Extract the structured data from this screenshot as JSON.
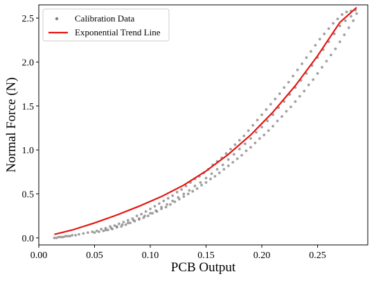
{
  "chart_data": {
    "type": "scatter",
    "title": "",
    "xlabel": "PCB Output",
    "ylabel": "Normal Force (N)",
    "xlim": [
      0.0,
      0.295
    ],
    "ylim": [
      -0.08,
      2.65
    ],
    "xticks": [
      0.0,
      0.05,
      0.1,
      0.15,
      0.2,
      0.25
    ],
    "xtick_labels": [
      "0.00",
      "0.05",
      "0.10",
      "0.15",
      "0.20",
      "0.25"
    ],
    "yticks": [
      0.0,
      0.5,
      1.0,
      1.5,
      2.0,
      2.5
    ],
    "ytick_labels": [
      "0.0",
      "0.5",
      "1.0",
      "1.5",
      "2.0",
      "2.5"
    ],
    "grid": false,
    "legend_position": "top-left",
    "series": [
      {
        "name": "Calibration Data",
        "kind": "scatter",
        "color": "#808080",
        "x": [
          0.014,
          0.016,
          0.018,
          0.02,
          0.022,
          0.024,
          0.026,
          0.028,
          0.03,
          0.033,
          0.036,
          0.04,
          0.044,
          0.048,
          0.052,
          0.056,
          0.06,
          0.064,
          0.068,
          0.072,
          0.076,
          0.08,
          0.084,
          0.088,
          0.092,
          0.096,
          0.1,
          0.104,
          0.108,
          0.112,
          0.116,
          0.12,
          0.124,
          0.128,
          0.132,
          0.136,
          0.14,
          0.144,
          0.148,
          0.152,
          0.156,
          0.16,
          0.164,
          0.168,
          0.172,
          0.176,
          0.18,
          0.184,
          0.188,
          0.192,
          0.196,
          0.2,
          0.204,
          0.208,
          0.212,
          0.216,
          0.22,
          0.224,
          0.228,
          0.232,
          0.236,
          0.24,
          0.244,
          0.248,
          0.252,
          0.256,
          0.26,
          0.264,
          0.268,
          0.272,
          0.276,
          0.28,
          0.284,
          0.05,
          0.054,
          0.058,
          0.062,
          0.066,
          0.07,
          0.074,
          0.078,
          0.082,
          0.086,
          0.09,
          0.094,
          0.098,
          0.102,
          0.106,
          0.11,
          0.114,
          0.118,
          0.122,
          0.126,
          0.13,
          0.134,
          0.138,
          0.142,
          0.146,
          0.15,
          0.154,
          0.158,
          0.162,
          0.166,
          0.17,
          0.174,
          0.178,
          0.182,
          0.186,
          0.19,
          0.194,
          0.198,
          0.202,
          0.206,
          0.21,
          0.214,
          0.218,
          0.222,
          0.226,
          0.23,
          0.234,
          0.238,
          0.242,
          0.246,
          0.25,
          0.254,
          0.258,
          0.262,
          0.266,
          0.27,
          0.274,
          0.278,
          0.282,
          0.285,
          0.06,
          0.065,
          0.07,
          0.075,
          0.08,
          0.085,
          0.09,
          0.095,
          0.1,
          0.105,
          0.11,
          0.115,
          0.12,
          0.125,
          0.13,
          0.135,
          0.14,
          0.145,
          0.15,
          0.155,
          0.16,
          0.165,
          0.17,
          0.175,
          0.18,
          0.185,
          0.19,
          0.195,
          0.2,
          0.205,
          0.21,
          0.215,
          0.22,
          0.225,
          0.23,
          0.235,
          0.24,
          0.245,
          0.25,
          0.255,
          0.26,
          0.265,
          0.27,
          0.275,
          0.28
        ],
        "y": [
          0.0,
          0.0,
          0.01,
          0.01,
          0.01,
          0.02,
          0.02,
          0.02,
          0.03,
          0.03,
          0.04,
          0.05,
          0.06,
          0.07,
          0.08,
          0.1,
          0.11,
          0.13,
          0.14,
          0.16,
          0.18,
          0.2,
          0.22,
          0.25,
          0.27,
          0.3,
          0.33,
          0.36,
          0.39,
          0.42,
          0.45,
          0.48,
          0.52,
          0.55,
          0.59,
          0.63,
          0.67,
          0.7,
          0.74,
          0.78,
          0.83,
          0.87,
          0.91,
          0.96,
          1.01,
          1.06,
          1.11,
          1.16,
          1.22,
          1.28,
          1.34,
          1.4,
          1.46,
          1.52,
          1.58,
          1.64,
          1.71,
          1.77,
          1.84,
          1.91,
          1.98,
          2.05,
          2.12,
          2.19,
          2.26,
          2.32,
          2.38,
          2.44,
          2.49,
          2.54,
          2.57,
          2.58,
          2.59,
          0.06,
          0.07,
          0.08,
          0.09,
          0.1,
          0.12,
          0.13,
          0.15,
          0.17,
          0.19,
          0.21,
          0.23,
          0.25,
          0.28,
          0.3,
          0.33,
          0.35,
          0.38,
          0.41,
          0.44,
          0.47,
          0.5,
          0.53,
          0.56,
          0.6,
          0.63,
          0.67,
          0.7,
          0.74,
          0.78,
          0.82,
          0.86,
          0.9,
          0.94,
          0.99,
          1.03,
          1.08,
          1.13,
          1.17,
          1.22,
          1.27,
          1.33,
          1.38,
          1.44,
          1.49,
          1.55,
          1.61,
          1.67,
          1.74,
          1.8,
          1.87,
          1.94,
          2.01,
          2.08,
          2.15,
          2.23,
          2.31,
          2.39,
          2.47,
          2.55,
          0.09,
          0.11,
          0.13,
          0.15,
          0.17,
          0.2,
          0.22,
          0.25,
          0.28,
          0.31,
          0.35,
          0.38,
          0.42,
          0.46,
          0.5,
          0.54,
          0.59,
          0.63,
          0.68,
          0.73,
          0.78,
          0.83,
          0.89,
          0.95,
          1.01,
          1.07,
          1.13,
          1.2,
          1.26,
          1.33,
          1.4,
          1.48,
          1.55,
          1.63,
          1.71,
          1.79,
          1.87,
          1.96,
          2.05,
          2.14,
          2.23,
          2.32,
          2.41,
          2.47,
          2.52
        ]
      },
      {
        "name": "Exponential Trend Line",
        "kind": "line",
        "color": "#e6140f",
        "x": [
          0.014,
          0.03,
          0.05,
          0.07,
          0.09,
          0.11,
          0.13,
          0.15,
          0.17,
          0.19,
          0.21,
          0.23,
          0.25,
          0.27,
          0.285
        ],
        "y": [
          0.04,
          0.09,
          0.17,
          0.26,
          0.36,
          0.47,
          0.6,
          0.76,
          0.95,
          1.17,
          1.43,
          1.73,
          2.07,
          2.45,
          2.62
        ]
      }
    ]
  }
}
